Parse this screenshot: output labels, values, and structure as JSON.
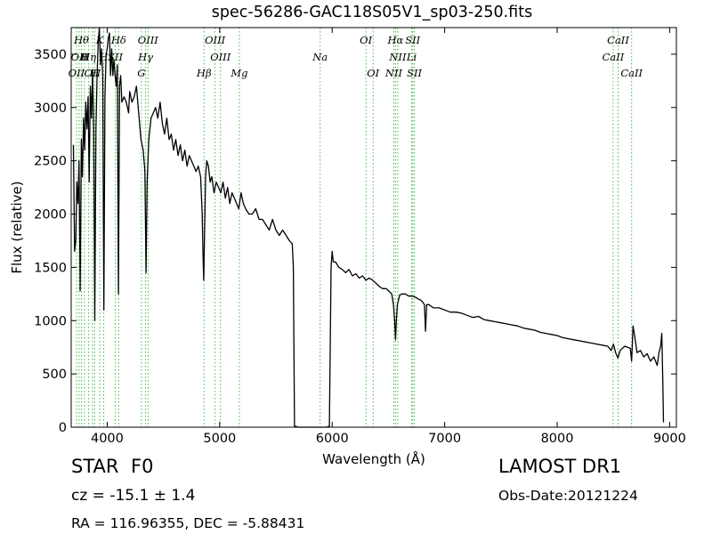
{
  "header": {
    "title": "spec-56286-GAC118S05V1_sp03-250.fits"
  },
  "info": {
    "object_type": "STAR",
    "object_class": "F0",
    "survey": "LAMOST DR1",
    "cz_label": "cz = -15.1 ± 1.4",
    "obs_date": "Obs-Date:20121224",
    "radec": "RA = 116.96355, DEC = -5.88431"
  },
  "chart_data": {
    "type": "line",
    "title": "spec-56286-GAC118S05V1_sp03-250.fits",
    "xlabel": "Wavelength (Å)",
    "ylabel": "Flux (relative)",
    "xlim": [
      3680,
      9060
    ],
    "ylim": [
      0,
      3750
    ],
    "x_ticks": [
      4000,
      5000,
      6000,
      7000,
      8000,
      9000
    ],
    "y_ticks": [
      0,
      500,
      1000,
      1500,
      2000,
      2500,
      3000,
      3500
    ],
    "grid": false,
    "line_color": "#000000",
    "marker_color": "#44bb44",
    "spectrum": [
      [
        3700,
        2650
      ],
      [
        3710,
        1650
      ],
      [
        3720,
        1750
      ],
      [
        3730,
        2300
      ],
      [
        3740,
        2100
      ],
      [
        3750,
        2500
      ],
      [
        3760,
        1280
      ],
      [
        3770,
        2700
      ],
      [
        3780,
        2350
      ],
      [
        3790,
        2900
      ],
      [
        3800,
        2600
      ],
      [
        3810,
        3050
      ],
      [
        3820,
        2800
      ],
      [
        3830,
        3100
      ],
      [
        3840,
        2300
      ],
      [
        3850,
        3200
      ],
      [
        3860,
        2900
      ],
      [
        3870,
        3350
      ],
      [
        3880,
        2800
      ],
      [
        3890,
        1000
      ],
      [
        3900,
        2800
      ],
      [
        3910,
        3300
      ],
      [
        3920,
        3600
      ],
      [
        3930,
        3750
      ],
      [
        3940,
        3400
      ],
      [
        3950,
        3550
      ],
      [
        3960,
        3300
      ],
      [
        3970,
        1100
      ],
      [
        3980,
        3100
      ],
      [
        3990,
        3500
      ],
      [
        4000,
        3550
      ],
      [
        4010,
        3650
      ],
      [
        4020,
        3700
      ],
      [
        4030,
        3300
      ],
      [
        4040,
        3550
      ],
      [
        4050,
        3300
      ],
      [
        4060,
        3450
      ],
      [
        4070,
        3300
      ],
      [
        4080,
        3200
      ],
      [
        4090,
        3400
      ],
      [
        4100,
        1250
      ],
      [
        4110,
        3200
      ],
      [
        4120,
        3300
      ],
      [
        4130,
        3050
      ],
      [
        4150,
        3100
      ],
      [
        4170,
        3050
      ],
      [
        4190,
        2950
      ],
      [
        4200,
        3150
      ],
      [
        4220,
        3050
      ],
      [
        4240,
        3100
      ],
      [
        4260,
        3200
      ],
      [
        4280,
        2950
      ],
      [
        4300,
        2700
      ],
      [
        4320,
        2600
      ],
      [
        4335,
        2400
      ],
      [
        4345,
        1450
      ],
      [
        4355,
        2300
      ],
      [
        4370,
        2700
      ],
      [
        4390,
        2900
      ],
      [
        4410,
        2950
      ],
      [
        4430,
        3000
      ],
      [
        4450,
        2900
      ],
      [
        4470,
        3050
      ],
      [
        4490,
        2850
      ],
      [
        4510,
        2750
      ],
      [
        4530,
        2900
      ],
      [
        4550,
        2700
      ],
      [
        4570,
        2750
      ],
      [
        4590,
        2600
      ],
      [
        4610,
        2700
      ],
      [
        4630,
        2550
      ],
      [
        4650,
        2650
      ],
      [
        4670,
        2500
      ],
      [
        4690,
        2600
      ],
      [
        4710,
        2450
      ],
      [
        4730,
        2550
      ],
      [
        4750,
        2500
      ],
      [
        4770,
        2450
      ],
      [
        4790,
        2400
      ],
      [
        4810,
        2450
      ],
      [
        4830,
        2350
      ],
      [
        4845,
        2000
      ],
      [
        4852,
        1620
      ],
      [
        4858,
        1380
      ],
      [
        4866,
        1850
      ],
      [
        4875,
        2350
      ],
      [
        4885,
        2500
      ],
      [
        4900,
        2450
      ],
      [
        4915,
        2300
      ],
      [
        4930,
        2350
      ],
      [
        4950,
        2200
      ],
      [
        4970,
        2300
      ],
      [
        4990,
        2250
      ],
      [
        5010,
        2200
      ],
      [
        5030,
        2300
      ],
      [
        5050,
        2150
      ],
      [
        5070,
        2250
      ],
      [
        5090,
        2100
      ],
      [
        5110,
        2200
      ],
      [
        5130,
        2150
      ],
      [
        5150,
        2100
      ],
      [
        5170,
        2050
      ],
      [
        5190,
        2200
      ],
      [
        5210,
        2100
      ],
      [
        5230,
        2050
      ],
      [
        5260,
        2000
      ],
      [
        5290,
        2000
      ],
      [
        5320,
        2050
      ],
      [
        5350,
        1950
      ],
      [
        5380,
        1950
      ],
      [
        5410,
        1900
      ],
      [
        5440,
        1850
      ],
      [
        5470,
        1950
      ],
      [
        5500,
        1850
      ],
      [
        5530,
        1800
      ],
      [
        5560,
        1850
      ],
      [
        5590,
        1800
      ],
      [
        5620,
        1750
      ],
      [
        5645,
        1720
      ],
      [
        5655,
        1500
      ],
      [
        5665,
        10
      ],
      [
        5700,
        0
      ],
      [
        5800,
        0
      ],
      [
        5900,
        0
      ],
      [
        5950,
        0
      ],
      [
        5975,
        10
      ],
      [
        5990,
        1500
      ],
      [
        6000,
        1650
      ],
      [
        6010,
        1550
      ],
      [
        6030,
        1550
      ],
      [
        6060,
        1500
      ],
      [
        6090,
        1480
      ],
      [
        6120,
        1450
      ],
      [
        6150,
        1480
      ],
      [
        6180,
        1420
      ],
      [
        6210,
        1440
      ],
      [
        6240,
        1400
      ],
      [
        6270,
        1420
      ],
      [
        6300,
        1380
      ],
      [
        6330,
        1400
      ],
      [
        6360,
        1380
      ],
      [
        6390,
        1350
      ],
      [
        6420,
        1320
      ],
      [
        6450,
        1300
      ],
      [
        6480,
        1300
      ],
      [
        6510,
        1270
      ],
      [
        6530,
        1250
      ],
      [
        6545,
        1150
      ],
      [
        6555,
        1000
      ],
      [
        6563,
        820
      ],
      [
        6570,
        1000
      ],
      [
        6580,
        1150
      ],
      [
        6600,
        1240
      ],
      [
        6620,
        1250
      ],
      [
        6650,
        1250
      ],
      [
        6680,
        1230
      ],
      [
        6710,
        1230
      ],
      [
        6740,
        1220
      ],
      [
        6770,
        1200
      ],
      [
        6790,
        1190
      ],
      [
        6800,
        1180
      ],
      [
        6820,
        1150
      ],
      [
        6830,
        900
      ],
      [
        6840,
        1150
      ],
      [
        6860,
        1150
      ],
      [
        6900,
        1120
      ],
      [
        6950,
        1120
      ],
      [
        7000,
        1100
      ],
      [
        7050,
        1080
      ],
      [
        7100,
        1080
      ],
      [
        7150,
        1070
      ],
      [
        7200,
        1050
      ],
      [
        7250,
        1030
      ],
      [
        7300,
        1040
      ],
      [
        7350,
        1010
      ],
      [
        7400,
        1000
      ],
      [
        7450,
        990
      ],
      [
        7500,
        980
      ],
      [
        7550,
        970
      ],
      [
        7600,
        960
      ],
      [
        7650,
        950
      ],
      [
        7700,
        930
      ],
      [
        7750,
        920
      ],
      [
        7800,
        910
      ],
      [
        7850,
        890
      ],
      [
        7900,
        880
      ],
      [
        7950,
        870
      ],
      [
        8000,
        860
      ],
      [
        8050,
        840
      ],
      [
        8100,
        830
      ],
      [
        8150,
        820
      ],
      [
        8200,
        810
      ],
      [
        8250,
        800
      ],
      [
        8300,
        790
      ],
      [
        8350,
        780
      ],
      [
        8400,
        770
      ],
      [
        8450,
        760
      ],
      [
        8480,
        720
      ],
      [
        8500,
        780
      ],
      [
        8520,
        700
      ],
      [
        8540,
        650
      ],
      [
        8560,
        720
      ],
      [
        8600,
        760
      ],
      [
        8650,
        740
      ],
      [
        8662,
        620
      ],
      [
        8675,
        950
      ],
      [
        8690,
        850
      ],
      [
        8710,
        700
      ],
      [
        8740,
        720
      ],
      [
        8770,
        660
      ],
      [
        8800,
        690
      ],
      [
        8830,
        620
      ],
      [
        8860,
        660
      ],
      [
        8890,
        580
      ],
      [
        8905,
        700
      ],
      [
        8920,
        760
      ],
      [
        8930,
        880
      ],
      [
        8940,
        400
      ],
      [
        8945,
        50
      ],
      [
        8950,
        50
      ]
    ],
    "line_markers": [
      {
        "x": 3727,
        "label": "OII",
        "row": 2
      },
      {
        "x": 3750,
        "label": "OII",
        "row": 1
      },
      {
        "x": 3771,
        "label": "Hθ",
        "row": 0
      },
      {
        "x": 3798,
        "label": "H",
        "row": 1
      },
      {
        "x": 3835,
        "label": "Hη",
        "row": 1
      },
      {
        "x": 3869,
        "label": "OII",
        "row": 2
      },
      {
        "x": 3889,
        "label": "H",
        "row": 2
      },
      {
        "x": 3934,
        "label": "K",
        "row": 0
      },
      {
        "x": 3969,
        "label": "H",
        "row": 1
      },
      {
        "x": 4072,
        "label": "SII",
        "row": 1
      },
      {
        "x": 4102,
        "label": "Hδ",
        "row": 0
      },
      {
        "x": 4304,
        "label": "G",
        "row": 2
      },
      {
        "x": 4341,
        "label": "Hγ",
        "row": 1
      },
      {
        "x": 4363,
        "label": "OIII",
        "row": 0
      },
      {
        "x": 4861,
        "label": "Hβ",
        "row": 2
      },
      {
        "x": 4959,
        "label": "OIII",
        "row": 0
      },
      {
        "x": 5007,
        "label": "OIII",
        "row": 1
      },
      {
        "x": 5175,
        "label": "Mg",
        "row": 2
      },
      {
        "x": 5893,
        "label": "Na",
        "row": 1
      },
      {
        "x": 6300,
        "label": "OI",
        "row": 0
      },
      {
        "x": 6364,
        "label": "OI",
        "row": 2
      },
      {
        "x": 6548,
        "label": "NII",
        "row": 2
      },
      {
        "x": 6563,
        "label": "Hα",
        "row": 0
      },
      {
        "x": 6583,
        "label": "NII",
        "row": 1
      },
      {
        "x": 6707,
        "label": "Li",
        "row": 1
      },
      {
        "x": 6716,
        "label": "SII",
        "row": 0
      },
      {
        "x": 6731,
        "label": "SII",
        "row": 2
      },
      {
        "x": 8498,
        "label": "CaII",
        "row": 1
      },
      {
        "x": 8542,
        "label": "CaII",
        "row": 0
      },
      {
        "x": 8662,
        "label": "CaII",
        "row": 2
      }
    ]
  }
}
